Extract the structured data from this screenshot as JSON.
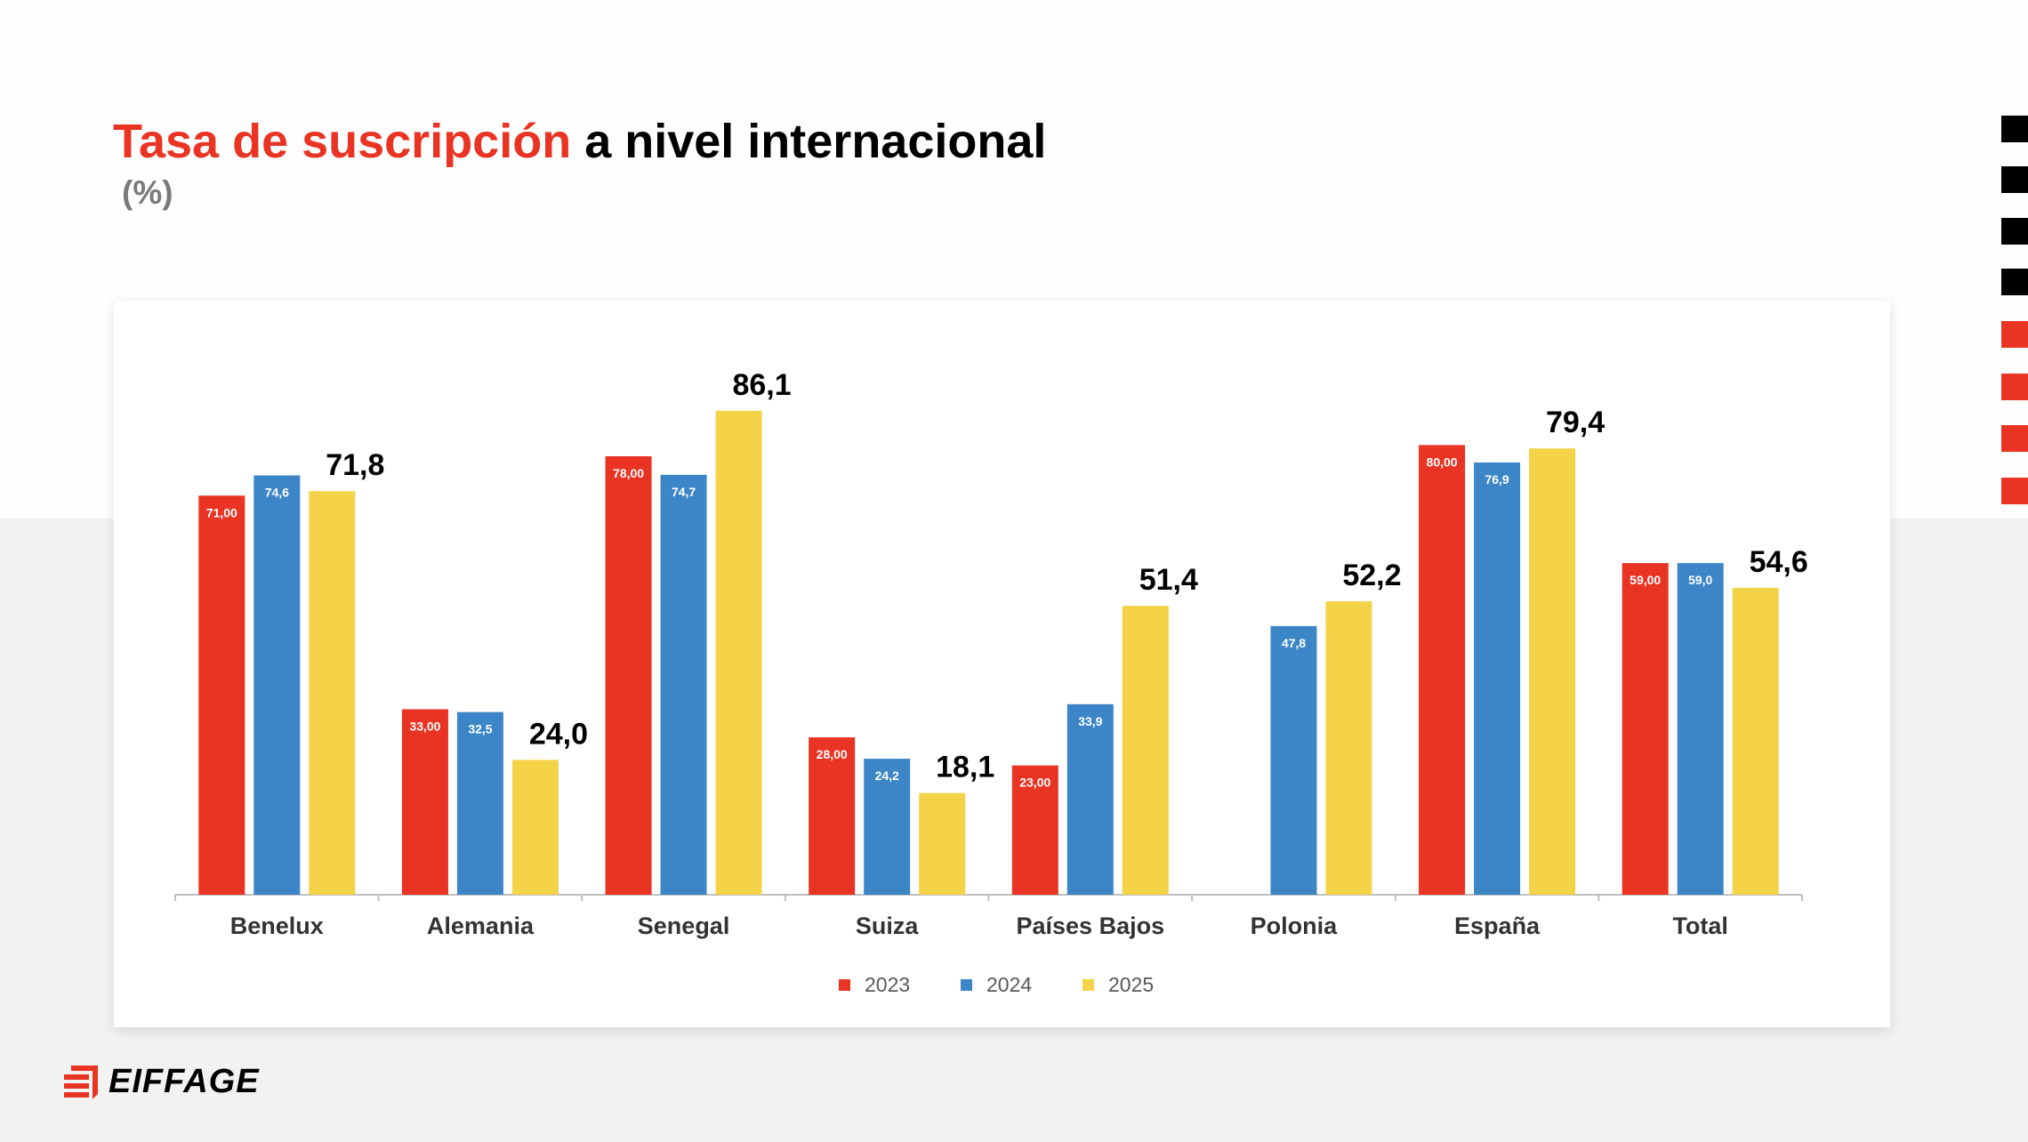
{
  "title": {
    "highlight": "Tasa de suscripción",
    "rest": " a nivel internacional"
  },
  "subtitle": "(%)",
  "colors": {
    "accent_red": "#e93323",
    "2023": "#e93323",
    "2024": "#3c86c8",
    "2025": "#f5d348",
    "black": "#000000"
  },
  "logo": {
    "text": "EIFFAGE"
  },
  "chart_data": {
    "type": "bar",
    "categories": [
      "Benelux",
      "Alemania",
      "Senegal",
      "Suiza",
      "Países Bajos",
      "Polonia",
      "España",
      "Total"
    ],
    "series": [
      {
        "name": "2023",
        "values": [
          71.0,
          33.0,
          78.0,
          28.0,
          23.0,
          null,
          80.0,
          59.0
        ],
        "labels": [
          "71,00",
          "33,00",
          "78,00",
          "28,00",
          "23,00",
          "",
          "80,00",
          "59,00"
        ]
      },
      {
        "name": "2024",
        "values": [
          74.6,
          32.5,
          74.7,
          24.2,
          33.9,
          47.8,
          76.9,
          59.0
        ],
        "labels": [
          "74,6",
          "32,5",
          "74,7",
          "24,2",
          "33,9",
          "47,8",
          "76,9",
          "59,0"
        ]
      },
      {
        "name": "2025",
        "values": [
          71.8,
          24.0,
          86.1,
          18.1,
          51.4,
          52.2,
          79.4,
          54.6
        ],
        "labels": [
          "71,8",
          "24,0",
          "86,1",
          "18,1",
          "51,4",
          "52,2",
          "79,4",
          "54,6"
        ]
      }
    ],
    "legend_placement": "bottom",
    "grid": false,
    "ylim": [
      0,
      90
    ]
  }
}
